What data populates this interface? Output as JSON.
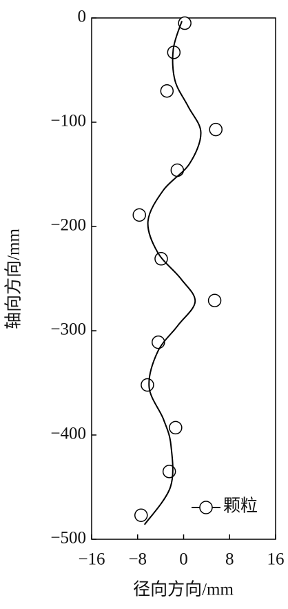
{
  "chart_data": {
    "type": "scatter",
    "x_label": "径向方向/mm",
    "y_label": "轴向方向/mm",
    "xlim": [
      -16,
      16
    ],
    "ylim": [
      -500,
      0
    ],
    "xticks": [
      {
        "value": -16,
        "label": "−16"
      },
      {
        "value": -8,
        "label": "−8"
      },
      0,
      8,
      16
    ],
    "yticks": [
      0,
      {
        "value": -100,
        "label": "−100"
      },
      {
        "value": -200,
        "label": "−200"
      },
      {
        "value": -300,
        "label": "−300"
      },
      {
        "value": -400,
        "label": "−400"
      },
      {
        "value": -500,
        "label": "−500"
      }
    ],
    "legend": "lower right",
    "grid": false,
    "series": [
      {
        "name": "颗粒",
        "color": "#000000",
        "style": "marker",
        "x": [
          0.2,
          -1.7,
          -2.9,
          5.6,
          -1.1,
          -7.7,
          -3.9,
          5.4,
          -4.4,
          -6.3,
          -1.4,
          -2.5,
          -7.4
        ],
        "values": [
          -5,
          -33,
          -70,
          -107,
          -146,
          -189,
          -231,
          -271,
          -311,
          -352,
          -393,
          -435,
          -477
        ]
      },
      {
        "color": "#000000",
        "style": "line",
        "x": [
          -0.3,
          -1.8,
          -1.5,
          0.8,
          3.0,
          1.0,
          -3.5,
          -6.2,
          -4.5,
          -0.5,
          2.0,
          -1.0,
          -4.5,
          -6.0,
          -3.5,
          -2.2,
          -2.3,
          -6.8
        ],
        "values": [
          -3,
          -30,
          -60,
          -85,
          -110,
          -140,
          -165,
          -195,
          -225,
          -250,
          -272,
          -295,
          -320,
          -354,
          -385,
          -410,
          -450,
          -486
        ]
      }
    ]
  }
}
